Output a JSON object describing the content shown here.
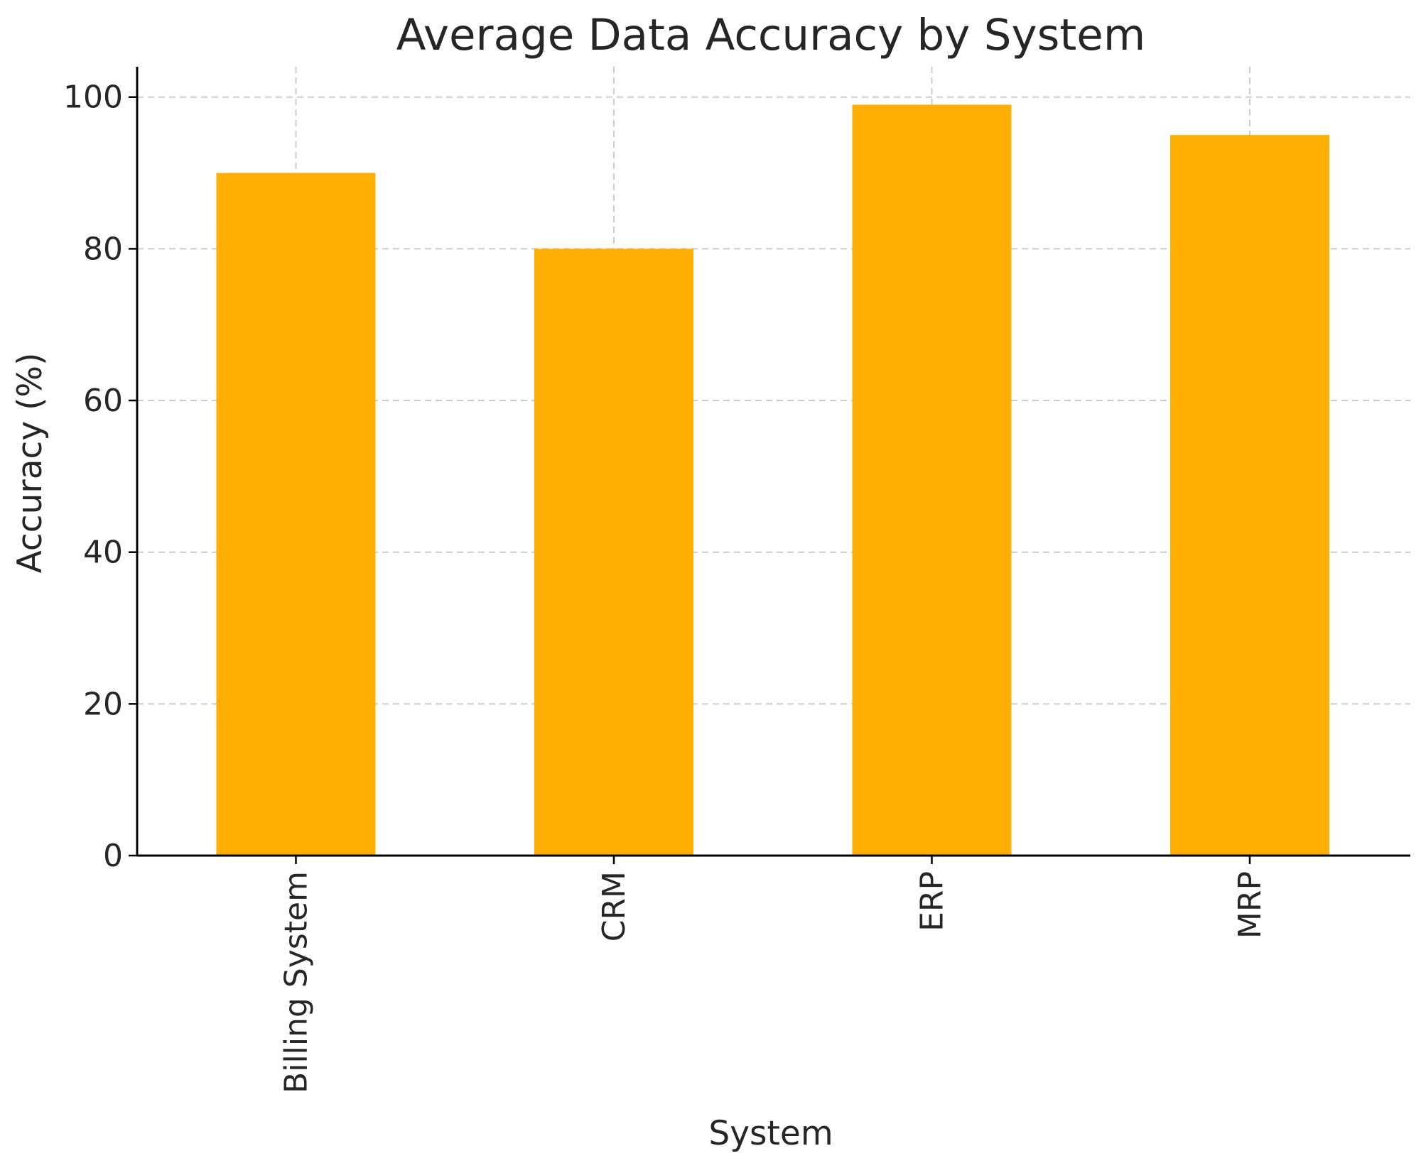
{
  "chart_data": {
    "type": "bar",
    "title": "Average Data Accuracy by System",
    "xlabel": "System",
    "ylabel": "Accuracy (%)",
    "categories": [
      "Billing System",
      "CRM",
      "ERP",
      "MRP"
    ],
    "values": [
      90,
      80,
      99,
      95
    ],
    "ylim": [
      0,
      104
    ],
    "yticks": [
      0,
      20,
      40,
      60,
      80,
      100
    ],
    "grid": true,
    "bar_color": "#FFAE03"
  }
}
